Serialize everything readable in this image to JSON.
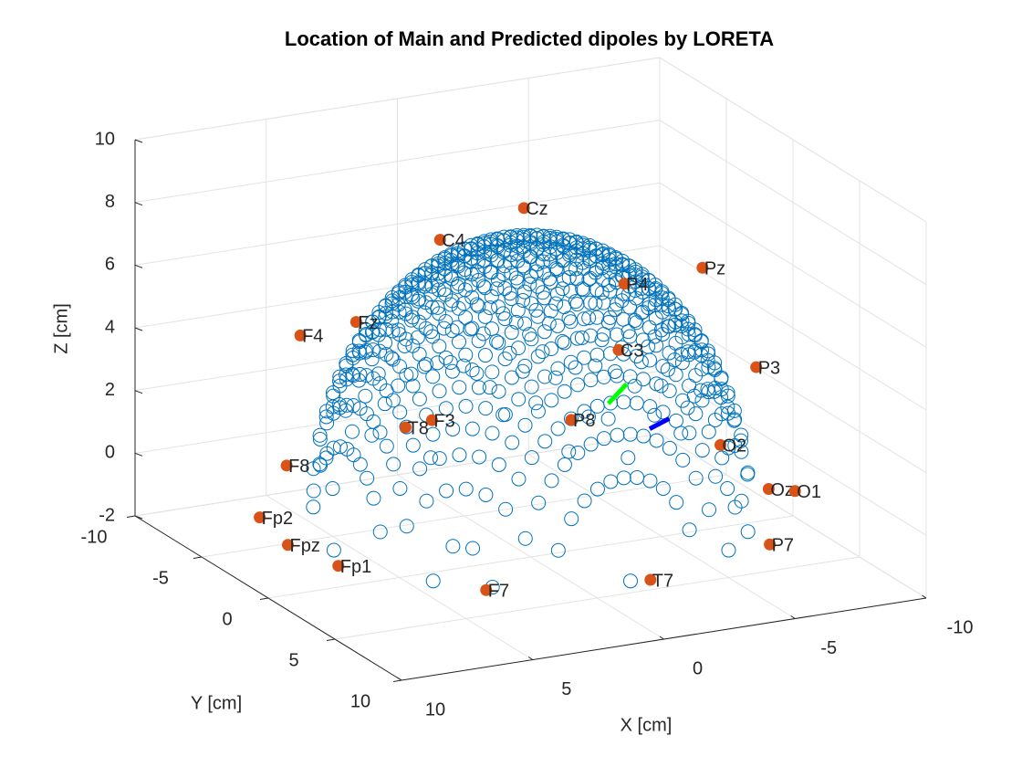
{
  "chart_data": {
    "type": "scatter3d",
    "title": "Location of Main and Predicted dipoles by LORETA",
    "x_label": "X [cm]",
    "y_label": "Y [cm]",
    "z_label": "Z [cm]",
    "xlim": [
      -10,
      10
    ],
    "ylim": [
      -10,
      10
    ],
    "zlim": [
      -2,
      10
    ],
    "xticks": [
      -10,
      -5,
      0,
      5,
      10
    ],
    "yticks": [
      -10,
      -5,
      0,
      5,
      10
    ],
    "zticks": [
      -2,
      0,
      2,
      4,
      6,
      8,
      10
    ],
    "grid": true,
    "source_grid": {
      "color": "#0072bd",
      "radius": 7.5,
      "spacing": 0.5,
      "base_z": -0.8,
      "top_z": 8
    },
    "electrodes": {
      "color": "#d95319",
      "labels": [
        "Cz",
        "C4",
        "Pz",
        "P4",
        "Fz",
        "F4",
        "C3",
        "P3",
        "F3",
        "T8",
        "P8",
        "O2",
        "F8",
        "Oz",
        "O1",
        "Fp2",
        "Fpz",
        "P7",
        "Fp1",
        "T7",
        "F7"
      ],
      "x": [
        0,
        0.1,
        -6.5,
        -5.5,
        6.7,
        6.9,
        0.1,
        -5.4,
        6.3,
        0.5,
        -4.9,
        -8.2,
        6,
        -7.5,
        -8.2,
        8.6,
        9.1,
        -4.8,
        8.6,
        -0.2,
        5.3
      ],
      "y": [
        -0.5,
        -6.6,
        0.1,
        -3.8,
        0.1,
        -3.7,
        6.8,
        6.3,
        5,
        -8.4,
        -6.6,
        -1.9,
        -6.5,
        3.1,
        3.7,
        -3.4,
        -0.3,
        8.5,
        2.5,
        8.6,
        7.1
      ],
      "z": [
        9,
        6.4,
        6.4,
        5,
        6.4,
        5,
        6.4,
        5,
        4.5,
        0,
        0,
        0,
        0,
        0,
        0,
        -0.5,
        -0.5,
        0,
        -0.5,
        -0.5,
        -0.5
      ]
    },
    "dipoles": [
      {
        "color": "#00ff00",
        "x": [
          -2.2,
          -2.8
        ],
        "y": [
          1.5,
          1.7
        ],
        "z": [
          3,
          3.6
        ]
      },
      {
        "color": "#0000ff",
        "x": [
          -5.3,
          -6.4
        ],
        "y": [
          -1.5,
          -2.2
        ],
        "z": [
          1,
          1
        ]
      }
    ]
  }
}
